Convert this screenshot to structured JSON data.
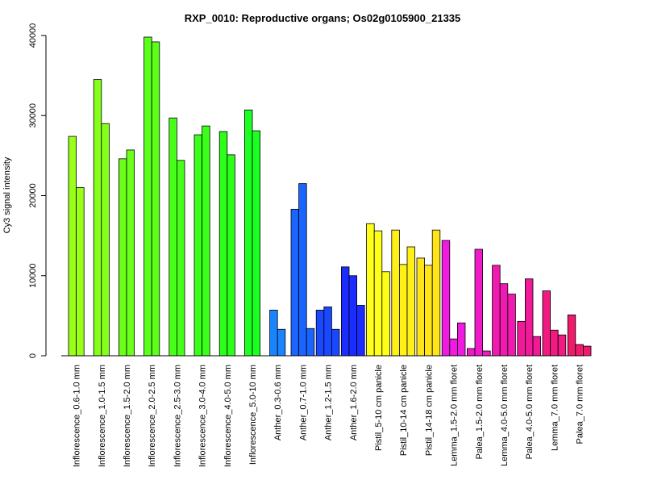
{
  "chart_data": {
    "type": "bar",
    "title": "RXP_0010: Reproductive organs; Os02g0105900_21335",
    "xlabel": "",
    "ylabel": "Cy3 signal intensity",
    "ylim": [
      0,
      40000
    ],
    "yticks": [
      0,
      10000,
      20000,
      30000,
      40000
    ],
    "grid": false,
    "legend": "none",
    "groups": [
      {
        "label": "Inflorescence_0.6-1.0 mm",
        "color": "#9AFF1A",
        "values": [
          27400,
          21000
        ]
      },
      {
        "label": "Inflorescence_1.0-1.5 mm",
        "color": "#86FF1A",
        "values": [
          34500,
          29000
        ]
      },
      {
        "label": "Inflorescence_1.5-2.0 mm",
        "color": "#6CFF1A",
        "values": [
          24600,
          25700
        ]
      },
      {
        "label": "Inflorescence_2.0-2.5 mm",
        "color": "#5AFF1A",
        "values": [
          39800,
          39200
        ]
      },
      {
        "label": "Inflorescence_2.5-3.0 mm",
        "color": "#48FF1A",
        "values": [
          29700,
          24400
        ]
      },
      {
        "label": "Inflorescence_3.0-4.0 mm",
        "color": "#3AFF1A",
        "values": [
          27600,
          28700
        ]
      },
      {
        "label": "Inflorescence_4.0-5.0 mm",
        "color": "#2CFF1A",
        "values": [
          28000,
          25100
        ]
      },
      {
        "label": "Inflorescence_5.0-10 mm",
        "color": "#1CFF22",
        "values": [
          30700,
          28100
        ]
      },
      {
        "label": "Anther_0.3-0.6 mm",
        "color": "#1A84FF",
        "values": [
          5700,
          3300
        ]
      },
      {
        "label": "Anther_0.7-1.0 mm",
        "color": "#1A64FF",
        "values": [
          18300,
          21500,
          3400
        ]
      },
      {
        "label": "Anther_1.2-1.5 mm",
        "color": "#1A48FF",
        "values": [
          5700,
          6100,
          3300
        ]
      },
      {
        "label": "Anther_1.6-2.0 mm",
        "color": "#1A2CFF",
        "values": [
          11100,
          10000,
          6300
        ]
      },
      {
        "label": "Pistil_5-10 cm panicle",
        "color": "#FFFF1A",
        "values": [
          16500,
          15600,
          10500
        ]
      },
      {
        "label": "Pistil_10-14 cm panicle",
        "color": "#FFF01A",
        "values": [
          15700,
          11400,
          13600
        ]
      },
      {
        "label": "Pistil_14-18 cm panicle",
        "color": "#FFE41A",
        "values": [
          12200,
          11300,
          15700
        ]
      },
      {
        "label": "Lemma_1.5-2.0 mm floret",
        "color": "#F01AE0",
        "values": [
          14400,
          2100,
          4100
        ]
      },
      {
        "label": "Palea_1.5-2.0 mm floret",
        "color": "#F01AC8",
        "values": [
          900,
          13300,
          600
        ]
      },
      {
        "label": "Lemma_4.0-5.0 mm floret",
        "color": "#F01AB0",
        "values": [
          11300,
          9000,
          7700
        ]
      },
      {
        "label": "Palea_4.0-5.0 mm floret",
        "color": "#F01A98",
        "values": [
          4300,
          9600,
          2400
        ]
      },
      {
        "label": "Lemma_7.0 mm floret",
        "color": "#F01A80",
        "values": [
          8100,
          3200,
          2600
        ]
      },
      {
        "label": "Palea_7.0 mm floret",
        "color": "#F01A6C",
        "values": [
          5100,
          1400,
          1200
        ]
      }
    ]
  }
}
